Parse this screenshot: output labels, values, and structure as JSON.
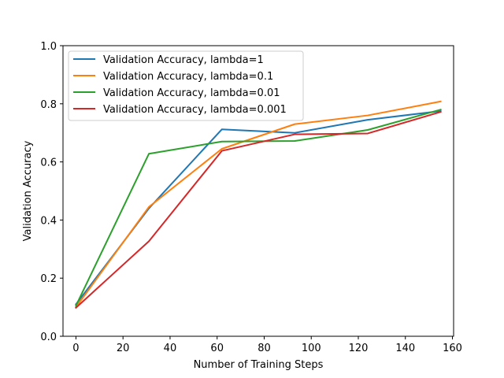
{
  "chart_data": {
    "type": "line",
    "title": "",
    "xlabel": "Number of Training Steps",
    "ylabel": "Validation Accuracy",
    "xlim": [
      -5.5,
      160.5
    ],
    "ylim": [
      0.0,
      1.0
    ],
    "xticks": [
      0,
      20,
      40,
      60,
      80,
      100,
      120,
      140,
      160
    ],
    "yticks": [
      0.0,
      0.2,
      0.4,
      0.6,
      0.8,
      1.0
    ],
    "xtick_labels": [
      "0",
      "20",
      "40",
      "60",
      "80",
      "100",
      "120",
      "140",
      "160"
    ],
    "ytick_labels": [
      "0.0",
      "0.2",
      "0.4",
      "0.6",
      "0.8",
      "1.0"
    ],
    "grid": false,
    "legend_position": "upper-left",
    "series": [
      {
        "name": "Validation Accuracy, lambda=1",
        "color": "#1f77b4",
        "x": [
          0,
          31,
          62,
          93,
          124,
          155
        ],
        "y": [
          0.11,
          0.44,
          0.712,
          0.7,
          0.745,
          0.775
        ]
      },
      {
        "name": "Validation Accuracy, lambda=0.1",
        "color": "#ff7f0e",
        "x": [
          0,
          31,
          62,
          93,
          124,
          155
        ],
        "y": [
          0.1,
          0.445,
          0.645,
          0.73,
          0.76,
          0.808
        ]
      },
      {
        "name": "Validation Accuracy, lambda=0.01",
        "color": "#2ca02c",
        "x": [
          0,
          31,
          62,
          93,
          124,
          155
        ],
        "y": [
          0.105,
          0.628,
          0.67,
          0.672,
          0.71,
          0.78
        ]
      },
      {
        "name": "Validation Accuracy, lambda=0.001",
        "color": "#d62728",
        "x": [
          0,
          31,
          62,
          93,
          124,
          155
        ],
        "y": [
          0.098,
          0.327,
          0.638,
          0.695,
          0.698,
          0.772
        ]
      }
    ]
  }
}
